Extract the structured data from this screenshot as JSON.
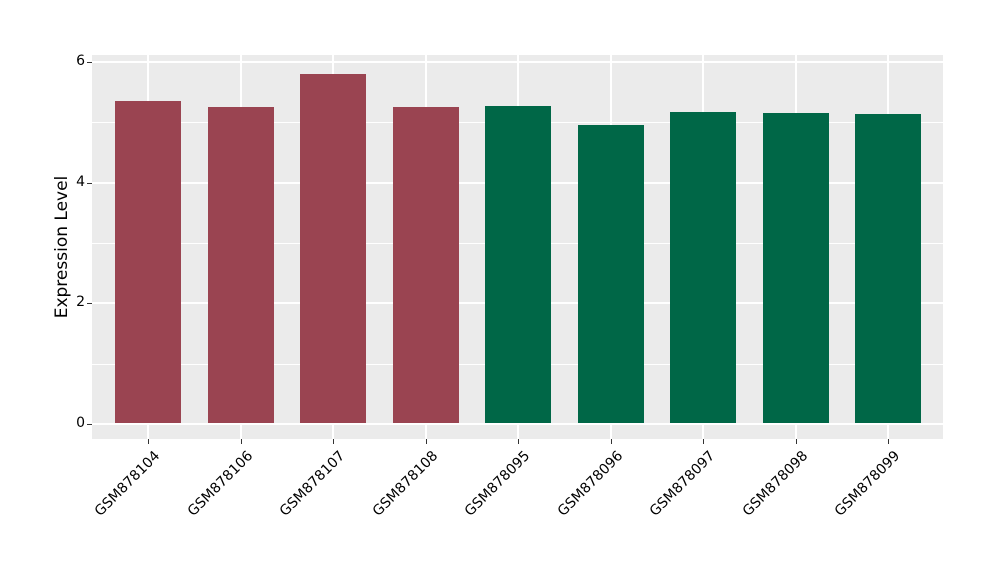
{
  "chart_data": {
    "type": "bar",
    "title": "",
    "xlabel": "",
    "ylabel": "Expression Level",
    "categories": [
      "GSM878104",
      "GSM878106",
      "GSM878107",
      "GSM878108",
      "GSM878095",
      "GSM878096",
      "GSM878097",
      "GSM878098",
      "GSM878099"
    ],
    "values": [
      5.35,
      5.26,
      5.8,
      5.26,
      5.27,
      4.95,
      5.17,
      5.16,
      5.14
    ],
    "bar_colors": [
      "#9A4451",
      "#9A4451",
      "#9A4451",
      "#9A4451",
      "#006747",
      "#006747",
      "#006747",
      "#006747",
      "#006747"
    ],
    "group_colors": {
      "left_group": "#9A4451",
      "right_group": "#006747"
    },
    "yticks": [
      0,
      2,
      4,
      6
    ],
    "yticks_minor": [
      1,
      3,
      5
    ],
    "ylim": [
      -0.25,
      6.12
    ],
    "grid": true,
    "legend": "none",
    "panel_bg": "#EBEBEB",
    "grid_color": "#FFFFFF",
    "text_color": "#000000"
  }
}
